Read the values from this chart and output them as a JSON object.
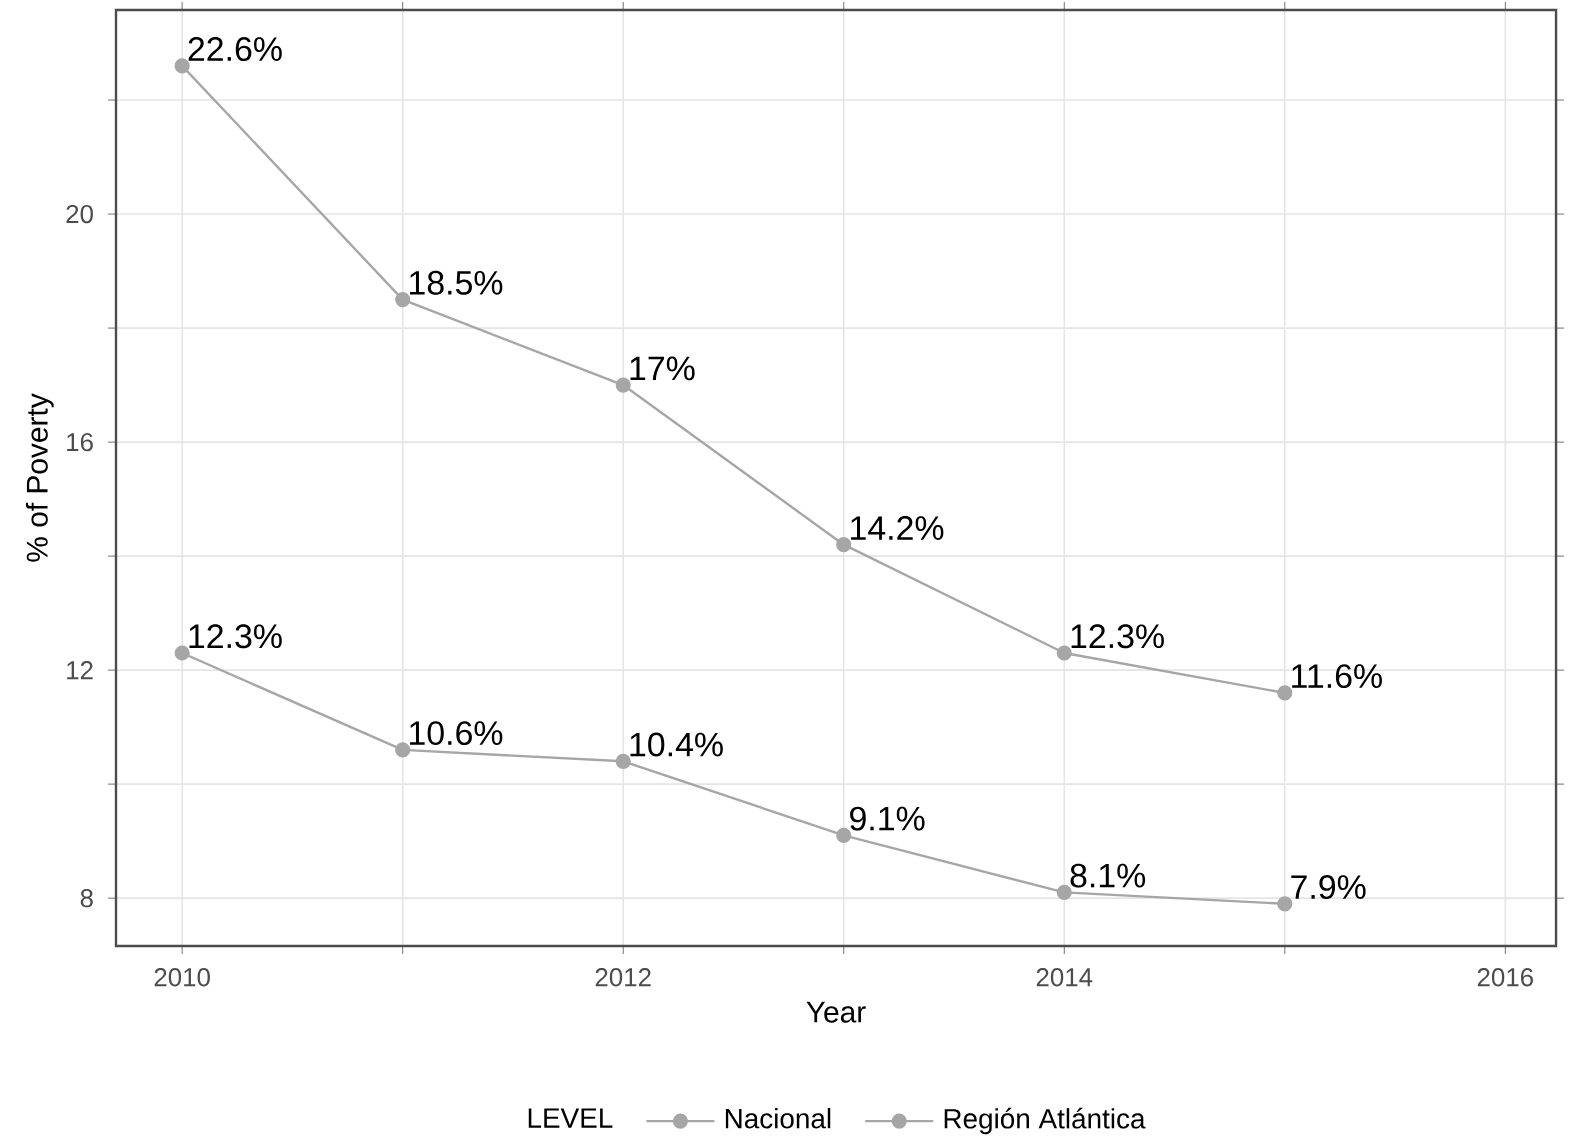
{
  "chart_data": {
    "type": "line",
    "xlabel": "Year",
    "ylabel": "% of Poverty",
    "legend_title": "LEVEL",
    "x": [
      2010,
      2011,
      2012,
      2013,
      2014,
      2015
    ],
    "series": [
      {
        "name": "Nacional",
        "color": "#a6a6a6",
        "values": [
          12.3,
          10.6,
          10.4,
          9.1,
          8.1,
          7.9
        ],
        "value_labels": [
          "12.3%",
          "10.6%",
          "10.4%",
          "9.1%",
          "8.1%",
          "7.9%"
        ]
      },
      {
        "name": "Región Atlántica",
        "color": "#a6a6a6",
        "values": [
          22.6,
          18.5,
          17,
          14.2,
          12.3,
          11.6
        ],
        "value_labels": [
          "22.6%",
          "18.5%",
          "17%",
          "14.2%",
          "12.3%",
          "11.6%"
        ]
      }
    ],
    "xlim": [
      2009.7,
      2016.23
    ],
    "ylim": [
      7.16,
      23.58
    ],
    "xticks": [
      2010,
      {
        "value": 2011,
        "label": null
      },
      2012,
      {
        "value": 2013,
        "label": null
      },
      2014,
      {
        "value": 2015,
        "label": null
      },
      2016
    ],
    "yticks": [
      8,
      {
        "value": 10,
        "label": null
      },
      12,
      {
        "value": 14,
        "label": null
      },
      16,
      {
        "value": 18,
        "label": null
      },
      20,
      {
        "value": 22,
        "label": null
      }
    ],
    "grid": true,
    "legend": "bottom",
    "marker": "circle",
    "line_style": "solid"
  }
}
